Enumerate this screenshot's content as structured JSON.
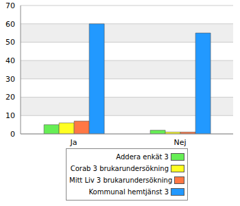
{
  "chart_data": {
    "type": "bar",
    "categories": [
      "Ja",
      "Nej"
    ],
    "series": [
      {
        "name": "Addera enkät 3",
        "color": "#66ee55",
        "values": [
          5,
          2
        ]
      },
      {
        "name": "Corab 3 brukarundersökning",
        "color": "#ffff22",
        "values": [
          6,
          1
        ]
      },
      {
        "name": "Mitt Liv 3 brukarundersökning",
        "color": "#ff7744",
        "values": [
          7,
          1
        ]
      },
      {
        "name": "Kommunal hemtjänst 3",
        "color": "#2299ff",
        "values": [
          60,
          55
        ]
      }
    ],
    "ylim": [
      0,
      70
    ],
    "yticks": [
      0,
      10,
      20,
      30,
      40,
      50,
      60,
      70
    ],
    "grid": true,
    "legend": "bottom"
  }
}
